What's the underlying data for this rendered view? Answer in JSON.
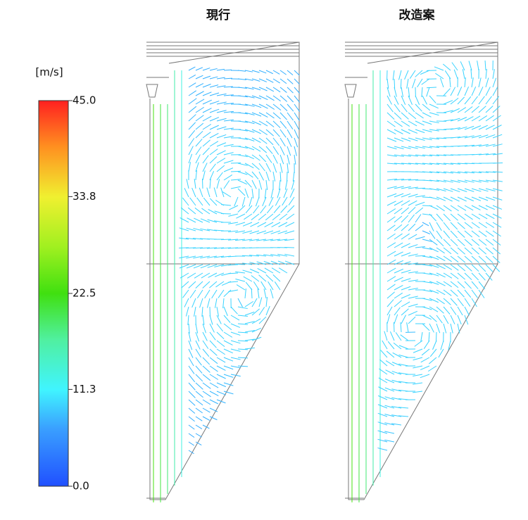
{
  "colorbar": {
    "unit": "[m/s]",
    "range": [
      0,
      45
    ],
    "ticks": [
      {
        "value": 45,
        "label": "45.0"
      },
      {
        "value": 33.8,
        "label": "33.8"
      },
      {
        "value": 22.5,
        "label": "22.5"
      },
      {
        "value": 11.3,
        "label": "11.3"
      },
      {
        "value": 0,
        "label": "0.0"
      }
    ]
  },
  "panels": [
    {
      "title": "現行"
    },
    {
      "title": "改造案"
    }
  ]
}
